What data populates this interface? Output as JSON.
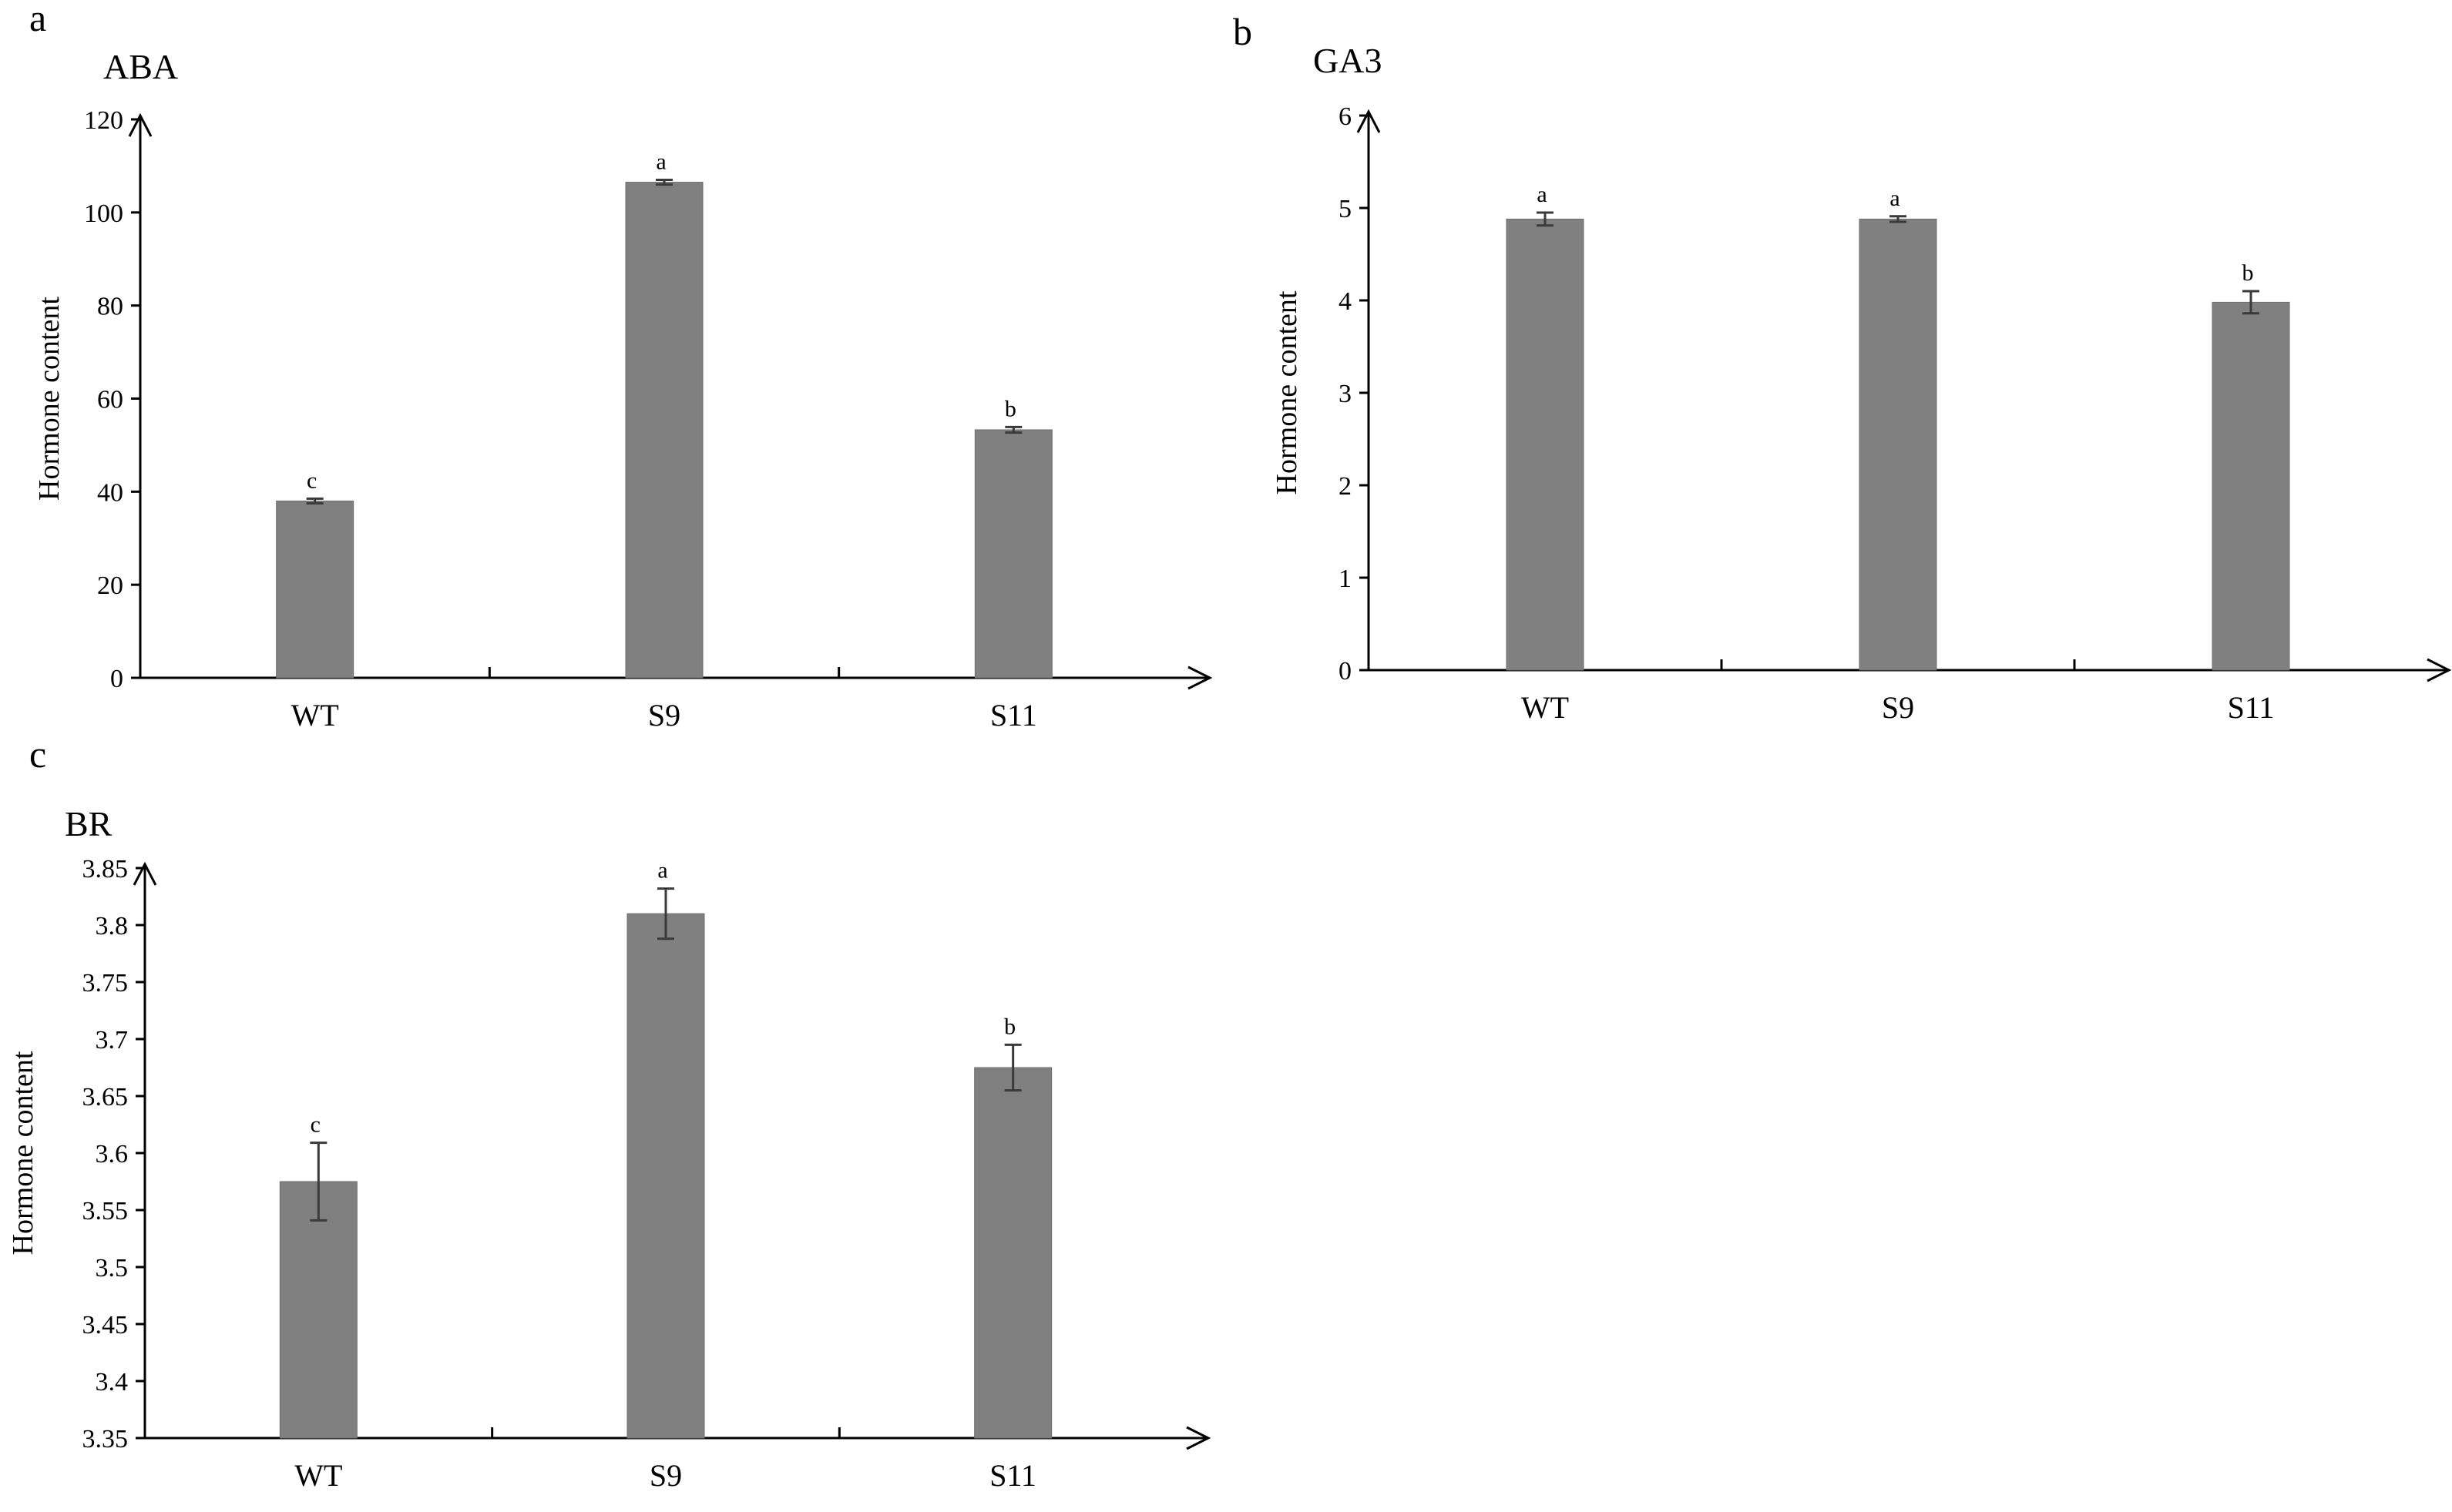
{
  "chart_data": [
    {
      "panel": "a",
      "type": "bar",
      "title": "ABA",
      "ylabel": "Hormone content",
      "xlabel": "",
      "categories": [
        "WT",
        "S9",
        "S11"
      ],
      "values": [
        38,
        106.5,
        53.3
      ],
      "errors": [
        0.5,
        0.5,
        0.6
      ],
      "significance": [
        "c",
        "a",
        "b"
      ],
      "ylim": [
        0,
        120
      ],
      "yticks": [
        0,
        20,
        40,
        60,
        80,
        100,
        120
      ],
      "ytick_labels": [
        "0",
        "20",
        "40",
        "60",
        "80",
        "100",
        "120"
      ],
      "bar_color": "#808080"
    },
    {
      "panel": "b",
      "type": "bar",
      "title": "GA3",
      "ylabel": "Hormone content",
      "xlabel": "",
      "categories": [
        "WT",
        "S9",
        "S11"
      ],
      "values": [
        4.88,
        4.88,
        3.98
      ],
      "errors": [
        0.07,
        0.03,
        0.12
      ],
      "significance": [
        "a",
        "a",
        "b"
      ],
      "ylim": [
        0,
        6
      ],
      "yticks": [
        0,
        1,
        2,
        3,
        4,
        5,
        6
      ],
      "ytick_labels": [
        "0",
        "1",
        "2",
        "3",
        "4",
        "5",
        "6"
      ],
      "bar_color": "#808080"
    },
    {
      "panel": "c",
      "type": "bar",
      "title": "BR",
      "ylabel": "Hormone content",
      "xlabel": "",
      "categories": [
        "WT",
        "S9",
        "S11"
      ],
      "values": [
        3.575,
        3.81,
        3.675
      ],
      "errors": [
        0.034,
        0.022,
        0.02
      ],
      "significance": [
        "c",
        "a",
        "b"
      ],
      "ylim": [
        3.35,
        3.85
      ],
      "yticks": [
        3.35,
        3.4,
        3.45,
        3.5,
        3.55,
        3.6,
        3.65,
        3.7,
        3.75,
        3.8,
        3.85
      ],
      "ytick_labels": [
        "3.35",
        "3.4",
        "3.45",
        "3.5",
        "3.55",
        "3.6",
        "3.65",
        "3.7",
        "3.75",
        "3.8",
        "3.85"
      ],
      "bar_color": "#808080"
    }
  ]
}
